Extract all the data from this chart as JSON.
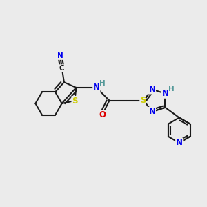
{
  "bg_color": "#ebebeb",
  "bond_color": "#1a1a1a",
  "bond_lw": 1.5,
  "atom_colors": {
    "N": "#0000ee",
    "S": "#cccc00",
    "O": "#dd0000",
    "H": "#559999"
  },
  "figsize": [
    3.0,
    3.0
  ],
  "dpi": 100,
  "font_size": 8.5,
  "font_size_small": 7.5
}
